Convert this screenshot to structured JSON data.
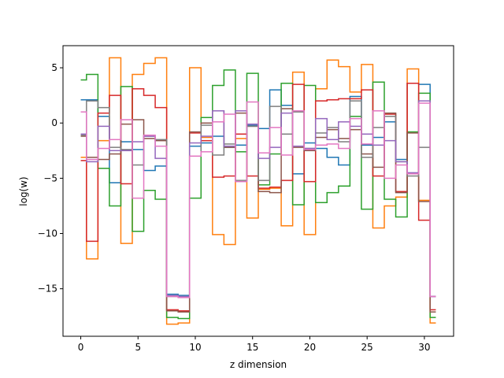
{
  "chart_data": {
    "type": "line",
    "drawstyle": "steps-mid",
    "xlabel": "z dimension",
    "ylabel": "log(w)",
    "xlim": [
      -1.55,
      32.55
    ],
    "ylim": [
      -19.3,
      7.0
    ],
    "xticks": [
      0,
      5,
      10,
      15,
      20,
      25,
      30
    ],
    "yticks": [
      5,
      0,
      -5,
      -10,
      -15
    ],
    "ytick_labels": [
      "5",
      "0",
      "−5",
      "−10",
      "−15"
    ],
    "grid": false,
    "x": [
      0,
      1,
      2,
      3,
      4,
      5,
      6,
      7,
      8,
      9,
      10,
      11,
      12,
      13,
      14,
      15,
      16,
      17,
      18,
      19,
      20,
      21,
      22,
      23,
      24,
      25,
      26,
      27,
      28,
      29,
      30,
      31
    ],
    "series": [
      {
        "color": "#1f77b4",
        "values": [
          2.1,
          2.1,
          0.6,
          -5.4,
          -1.7,
          -2.4,
          -4.3,
          -3.9,
          -15.5,
          -15.6,
          -2.1,
          -1.8,
          -1.2,
          -2.2,
          -2.0,
          -0.2,
          -0.5,
          3.0,
          1.6,
          -4.6,
          -1.8,
          -2.3,
          -3.1,
          -3.8,
          2.4,
          -2.0,
          -1.3,
          0.1,
          -3.3,
          3.6,
          3.5,
          -15.7
        ]
      },
      {
        "color": "#ff7f0e",
        "values": [
          -3.1,
          -12.3,
          -1.6,
          5.9,
          -10.9,
          4.4,
          5.4,
          5.9,
          -18.2,
          -18.1,
          5.0,
          -1.3,
          -10.1,
          -11.0,
          -1.4,
          -8.6,
          -6.0,
          -5.9,
          -9.3,
          4.6,
          -10.1,
          3.1,
          5.7,
          5.1,
          2.8,
          5.3,
          -9.5,
          -7.5,
          -6.7,
          4.9,
          -7.0,
          -18.1
        ]
      },
      {
        "color": "#2ca02c",
        "values": [
          3.9,
          4.4,
          -4.1,
          -7.5,
          3.3,
          -9.8,
          -6.1,
          -6.9,
          -17.6,
          -17.7,
          -6.8,
          0.5,
          3.4,
          4.8,
          -2.6,
          4.5,
          -5.6,
          -2.8,
          3.6,
          -7.4,
          3.4,
          -7.2,
          -6.3,
          -5.7,
          0.6,
          -7.8,
          3.7,
          -6.9,
          -8.5,
          -0.8,
          2.7,
          -17.6
        ]
      },
      {
        "color": "#d62728",
        "values": [
          -3.4,
          -10.7,
          0.9,
          2.5,
          -5.5,
          3.1,
          2.5,
          1.4,
          -16.9,
          -17.0,
          -0.9,
          -1.6,
          -4.9,
          -4.8,
          -1.0,
          -4.8,
          -5.9,
          -5.8,
          -5.2,
          3.5,
          -5.3,
          2.0,
          2.1,
          2.2,
          2.2,
          3.0,
          -4.8,
          0.8,
          -6.2,
          3.6,
          -8.8,
          -16.9
        ]
      },
      {
        "color": "#8c564b",
        "values": [
          -1.2,
          -3.1,
          -3.3,
          -2.8,
          -0.1,
          0.3,
          -1.4,
          -1.6,
          -17.0,
          -17.1,
          -0.8,
          0.0,
          1.1,
          -2.2,
          0.9,
          -0.3,
          -6.2,
          -6.3,
          1.3,
          -2.2,
          -2.5,
          -1.3,
          -0.6,
          -1.4,
          -0.6,
          -2.8,
          -4.0,
          0.9,
          -6.3,
          -0.9,
          -7.1,
          -17.1
        ]
      },
      {
        "color": "#7f7f7f",
        "values": [
          -1.1,
          2.0,
          1.4,
          -2.2,
          -2.4,
          -3.8,
          -1.2,
          -1.5,
          -15.7,
          -15.7,
          -3.0,
          -0.2,
          -2.9,
          -1.9,
          -5.2,
          -0.3,
          -5.2,
          1.5,
          -1.0,
          1.0,
          -2.3,
          -0.9,
          -0.4,
          -1.7,
          2.0,
          -3.1,
          -0.4,
          0.6,
          -3.5,
          -4.8,
          -2.2,
          -15.7
        ]
      },
      {
        "color": "#9467bd",
        "values": [
          -1.0,
          -3.5,
          -0.3,
          -2.5,
          -2.5,
          -1.7,
          -1.2,
          -3.2,
          -15.6,
          -15.7,
          -1.8,
          -1.2,
          1.1,
          -2.1,
          1.1,
          -0.1,
          -3.2,
          -2.2,
          0.9,
          -2.1,
          -2.3,
          0.4,
          -1.5,
          0.1,
          -0.3,
          -1.0,
          -2.0,
          -1.6,
          -3.5,
          -4.5,
          2.0,
          -15.7
        ]
      },
      {
        "color": "#e377c2",
        "values": [
          1.0,
          -3.3,
          -2.3,
          -1.5,
          0.3,
          -6.8,
          -1.1,
          -2.1,
          -15.7,
          -15.8,
          -3.0,
          -2.6,
          0.1,
          0.8,
          -5.3,
          1.9,
          -2.7,
          -0.4,
          -2.9,
          1.1,
          -2.4,
          -2.0,
          -1.9,
          -2.3,
          0.4,
          -1.9,
          1.1,
          -5.0,
          -3.8,
          -4.6,
          1.8,
          -15.7
        ]
      }
    ]
  }
}
